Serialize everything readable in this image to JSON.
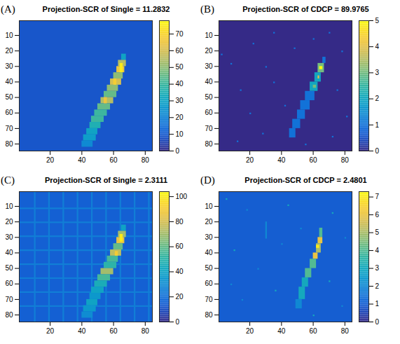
{
  "chart_data": [
    {
      "type": "heatmap",
      "panel": "(A)",
      "title": "Projection-SCR of Single = 11.2832",
      "xlim": [
        0.5,
        84.5
      ],
      "ylim": [
        0.5,
        84.5
      ],
      "xticks": [
        20,
        40,
        60,
        80
      ],
      "yticks": [
        10,
        20,
        30,
        40,
        50,
        60,
        70,
        80
      ],
      "colorbar": {
        "range": [
          0,
          78
        ],
        "ticks": [
          0,
          10,
          20,
          30,
          40,
          50,
          60,
          70
        ]
      },
      "background": 9,
      "cells": [
        [
          65,
          68,
          22,
          26,
          30
        ],
        [
          63,
          68,
          26,
          30,
          55
        ],
        [
          62,
          67,
          30,
          34,
          65
        ],
        [
          60,
          66,
          34,
          38,
          50
        ],
        [
          58,
          65,
          38,
          42,
          60
        ],
        [
          56,
          63,
          42,
          46,
          50
        ],
        [
          54,
          62,
          46,
          50,
          45
        ],
        [
          52,
          60,
          50,
          54,
          55
        ],
        [
          50,
          58,
          54,
          58,
          45
        ],
        [
          48,
          56,
          58,
          62,
          40
        ],
        [
          46,
          54,
          62,
          66,
          40
        ],
        [
          45,
          52,
          66,
          70,
          35
        ],
        [
          43,
          50,
          70,
          74,
          30
        ],
        [
          41,
          49,
          74,
          78,
          28
        ],
        [
          40,
          47,
          78,
          82,
          22
        ],
        [
          64,
          66,
          28,
          34,
          75
        ],
        [
          60,
          62,
          38,
          42,
          68
        ],
        [
          54,
          56,
          50,
          54,
          65
        ]
      ]
    },
    {
      "type": "heatmap",
      "panel": "(B)",
      "title": "Projection-SCR of CDCP = 89.9765",
      "xlim": [
        0.5,
        84.5
      ],
      "ylim": [
        0.5,
        84.5
      ],
      "xticks": [
        20,
        40,
        60,
        80
      ],
      "yticks": [
        10,
        20,
        30,
        40,
        50,
        60,
        70,
        80
      ],
      "colorbar": {
        "range": [
          0,
          5
        ],
        "ticks": [
          0,
          1,
          2,
          3,
          4,
          5
        ]
      },
      "background": 0,
      "cells": [
        [
          66,
          68,
          24,
          28,
          1
        ],
        [
          63,
          67,
          28,
          34,
          3
        ],
        [
          61,
          65,
          34,
          40,
          2
        ],
        [
          58,
          63,
          40,
          46,
          2
        ],
        [
          55,
          61,
          46,
          52,
          1
        ],
        [
          52,
          58,
          52,
          58,
          1
        ],
        [
          50,
          55,
          58,
          64,
          1
        ],
        [
          47,
          52,
          64,
          70,
          1
        ],
        [
          45,
          49,
          70,
          76,
          1
        ],
        [
          64,
          66,
          30,
          32,
          5
        ],
        [
          63,
          64,
          36,
          38,
          4
        ],
        [
          60,
          62,
          42,
          44,
          3
        ],
        [
          22,
          23,
          15,
          16,
          1
        ],
        [
          35,
          36,
          8,
          9,
          1
        ],
        [
          2,
          3,
          22,
          23,
          1
        ],
        [
          8,
          9,
          28,
          29,
          1
        ],
        [
          14,
          15,
          45,
          46,
          1
        ],
        [
          20,
          21,
          60,
          61,
          1
        ],
        [
          28,
          29,
          73,
          74,
          1
        ],
        [
          42,
          43,
          55,
          56,
          1
        ],
        [
          70,
          71,
          8,
          9,
          1
        ],
        [
          78,
          79,
          20,
          21,
          1
        ],
        [
          75,
          76,
          45,
          46,
          1
        ],
        [
          81,
          82,
          62,
          63,
          1
        ],
        [
          72,
          73,
          75,
          76,
          1
        ],
        [
          55,
          56,
          80,
          81,
          1
        ],
        [
          12,
          13,
          78,
          79,
          1
        ],
        [
          35,
          36,
          40,
          41,
          1
        ],
        [
          60,
          61,
          12,
          13,
          1
        ],
        [
          48,
          49,
          18,
          19,
          1
        ],
        [
          30,
          31,
          30,
          31,
          1
        ]
      ]
    },
    {
      "type": "heatmap",
      "panel": "(C)",
      "title": "Projection-SCR of Single = 2.3111",
      "xlim": [
        0.5,
        84.5
      ],
      "ylim": [
        0.5,
        84.5
      ],
      "xticks": [
        20,
        40,
        60,
        80
      ],
      "yticks": [
        10,
        20,
        30,
        40,
        50,
        60,
        70,
        80
      ],
      "colorbar": {
        "range": [
          0,
          104
        ],
        "ticks": [
          0,
          20,
          40,
          60,
          80,
          100
        ]
      },
      "background": 15,
      "cells": [
        [
          10,
          11,
          0.5,
          84.5,
          25
        ],
        [
          19,
          20,
          0.5,
          84.5,
          25
        ],
        [
          28,
          29,
          0.5,
          84.5,
          25
        ],
        [
          37,
          38,
          0.5,
          84.5,
          25
        ],
        [
          46,
          47,
          0.5,
          84.5,
          25
        ],
        [
          55,
          56,
          0.5,
          84.5,
          25
        ],
        [
          64,
          65,
          0.5,
          84.5,
          25
        ],
        [
          73,
          74,
          0.5,
          84.5,
          25
        ],
        [
          82,
          83,
          0.5,
          84.5,
          25
        ],
        [
          0.5,
          84.5,
          11,
          12,
          25
        ],
        [
          0.5,
          84.5,
          20,
          21,
          25
        ],
        [
          0.5,
          84.5,
          29,
          30,
          25
        ],
        [
          0.5,
          84.5,
          38,
          39,
          25
        ],
        [
          0.5,
          84.5,
          47,
          48,
          25
        ],
        [
          0.5,
          84.5,
          56,
          57,
          25
        ],
        [
          0.5,
          84.5,
          65,
          66,
          25
        ],
        [
          0.5,
          84.5,
          74,
          75,
          25
        ],
        [
          65,
          68,
          22,
          26,
          40
        ],
        [
          63,
          68,
          26,
          30,
          70
        ],
        [
          62,
          67,
          30,
          34,
          85
        ],
        [
          60,
          66,
          34,
          38,
          60
        ],
        [
          58,
          65,
          38,
          42,
          75
        ],
        [
          56,
          63,
          42,
          46,
          55
        ],
        [
          54,
          62,
          46,
          50,
          50
        ],
        [
          52,
          60,
          50,
          54,
          70
        ],
        [
          50,
          58,
          54,
          58,
          55
        ],
        [
          48,
          56,
          58,
          62,
          45
        ],
        [
          46,
          54,
          62,
          66,
          40
        ],
        [
          45,
          52,
          66,
          70,
          35
        ],
        [
          43,
          50,
          70,
          74,
          40
        ],
        [
          41,
          49,
          74,
          78,
          35
        ],
        [
          40,
          47,
          78,
          82,
          30
        ],
        [
          64,
          66,
          28,
          33,
          100
        ],
        [
          61,
          63,
          39,
          42,
          90
        ]
      ]
    },
    {
      "type": "heatmap",
      "panel": "(D)",
      "title": "Projection-SCR of CDCP = 2.4801",
      "xlim": [
        0.5,
        84.5
      ],
      "ylim": [
        0.5,
        84.5
      ],
      "xticks": [
        20,
        40,
        60,
        80
      ],
      "yticks": [
        10,
        20,
        30,
        40,
        50,
        60,
        70,
        80
      ],
      "colorbar": {
        "range": [
          0,
          7.3
        ],
        "ticks": [
          0,
          1,
          2,
          3,
          4,
          5,
          6,
          7
        ]
      },
      "background": 1,
      "cells": [
        [
          5,
          6,
          5,
          6,
          3
        ],
        [
          18,
          19,
          12,
          13,
          2
        ],
        [
          30,
          31,
          20,
          31,
          2
        ],
        [
          44,
          45,
          9,
          10,
          3
        ],
        [
          72,
          73,
          14,
          15,
          3
        ],
        [
          80,
          81,
          30,
          31,
          2
        ],
        [
          10,
          11,
          38,
          39,
          3
        ],
        [
          25,
          26,
          50,
          51,
          2
        ],
        [
          36,
          37,
          64,
          65,
          3
        ],
        [
          15,
          16,
          70,
          71,
          2
        ],
        [
          70,
          71,
          58,
          59,
          3
        ],
        [
          78,
          79,
          74,
          75,
          2
        ],
        [
          60,
          61,
          80,
          81,
          3
        ],
        [
          8,
          9,
          60,
          61,
          2
        ],
        [
          40,
          41,
          34,
          35,
          2
        ],
        [
          52,
          53,
          24,
          25,
          2
        ],
        [
          64,
          66,
          24,
          30,
          4
        ],
        [
          63,
          66,
          30,
          34,
          6
        ],
        [
          62,
          65,
          34,
          40,
          5
        ],
        [
          60,
          63,
          40,
          44,
          6
        ],
        [
          58,
          62,
          44,
          50,
          4
        ],
        [
          55,
          59,
          50,
          56,
          4
        ],
        [
          53,
          57,
          56,
          62,
          3
        ],
        [
          51,
          55,
          62,
          70,
          3
        ],
        [
          49,
          53,
          70,
          76,
          2
        ],
        [
          62,
          64,
          35,
          37,
          7
        ]
      ]
    }
  ]
}
